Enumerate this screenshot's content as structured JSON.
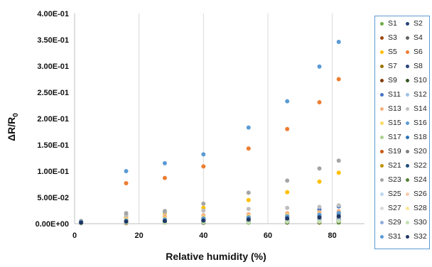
{
  "chart_data": {
    "type": "scatter",
    "title": "",
    "xlabel": "Relative humidity (%)",
    "ylabel_main": "ΔR/R",
    "ylabel_sub": "0",
    "xlim": [
      0,
      90
    ],
    "ylim": [
      0,
      0.4
    ],
    "xticks": [
      0,
      20,
      40,
      60,
      80
    ],
    "xtick_labels": [
      "0",
      "20",
      "40",
      "60",
      "80"
    ],
    "yticks": [
      0,
      0.05,
      0.1,
      0.15,
      0.2,
      0.25,
      0.3,
      0.35,
      0.4
    ],
    "ytick_labels": [
      "0.00E+00",
      "5.00E-02",
      "1.00E-01",
      "1.50E-01",
      "2.00E-01",
      "2.50E-01",
      "3.00E-01",
      "3.50E-01",
      "4.00E-01"
    ],
    "grid": "vertical",
    "legend_position": "right",
    "x": [
      2,
      16,
      28,
      40,
      54,
      66,
      76,
      82
    ],
    "series": [
      {
        "name": "S1",
        "color": "#70ad47",
        "values": [
          0.002,
          0.002,
          0.002,
          0.002,
          0.002,
          0.002,
          0.002,
          0.002
        ]
      },
      {
        "name": "S2",
        "color": "#264478",
        "values": [
          0.002,
          0.004,
          0.004,
          0.006,
          0.006,
          0.008,
          0.01,
          0.012
        ]
      },
      {
        "name": "S3",
        "color": "#9e480e",
        "values": [
          0.002,
          0.002,
          0.003,
          0.003,
          0.004,
          0.004,
          0.005,
          0.005
        ]
      },
      {
        "name": "S4",
        "color": "#636363",
        "values": [
          0.002,
          0.003,
          0.004,
          0.005,
          0.006,
          0.007,
          0.008,
          0.009
        ]
      },
      {
        "name": "S5",
        "color": "#ffc000",
        "values": [
          0.004,
          0.012,
          0.02,
          0.03,
          0.045,
          0.06,
          0.08,
          0.097
        ]
      },
      {
        "name": "S6",
        "color": "#ed7d31",
        "values": [
          0.004,
          0.077,
          0.087,
          0.109,
          0.143,
          0.18,
          0.231,
          0.275
        ]
      },
      {
        "name": "S7",
        "color": "#997300",
        "values": [
          0.002,
          0.002,
          0.002,
          0.003,
          0.003,
          0.003,
          0.004,
          0.004
        ]
      },
      {
        "name": "S8",
        "color": "#264478",
        "values": [
          0.001,
          0.002,
          0.002,
          0.003,
          0.004,
          0.005,
          0.006,
          0.007
        ]
      },
      {
        "name": "S9",
        "color": "#843c0c",
        "values": [
          0.001,
          0.001,
          0.002,
          0.002,
          0.003,
          0.003,
          0.003,
          0.004
        ]
      },
      {
        "name": "S10",
        "color": "#375623",
        "values": [
          0.001,
          0.002,
          0.002,
          0.002,
          0.003,
          0.003,
          0.004,
          0.004
        ]
      },
      {
        "name": "S11",
        "color": "#4472c4",
        "values": [
          0.003,
          0.005,
          0.007,
          0.01,
          0.013,
          0.017,
          0.027,
          0.033
        ]
      },
      {
        "name": "S12",
        "color": "#9dc3e6",
        "values": [
          0.002,
          0.003,
          0.004,
          0.005,
          0.006,
          0.007,
          0.008,
          0.009
        ]
      },
      {
        "name": "S13",
        "color": "#f4b183",
        "values": [
          0.003,
          0.01,
          0.014,
          0.016,
          0.018,
          0.02,
          0.022,
          0.024
        ]
      },
      {
        "name": "S14",
        "color": "#bfbfbf",
        "values": [
          0.003,
          0.016,
          0.022,
          0.025,
          0.028,
          0.03,
          0.032,
          0.035
        ]
      },
      {
        "name": "S15",
        "color": "#ffd966",
        "values": [
          0.003,
          0.008,
          0.01,
          0.012,
          0.014,
          0.016,
          0.018,
          0.02
        ]
      },
      {
        "name": "S16",
        "color": "#5b9bd5",
        "values": [
          0.005,
          0.1,
          0.115,
          0.132,
          0.183,
          0.233,
          0.299,
          0.346
        ]
      },
      {
        "name": "S17",
        "color": "#a9d18e",
        "values": [
          0.002,
          0.003,
          0.004,
          0.005,
          0.006,
          0.007,
          0.008,
          0.009
        ]
      },
      {
        "name": "S18",
        "color": "#2e75b6",
        "values": [
          0.002,
          0.004,
          0.006,
          0.008,
          0.01,
          0.013,
          0.016,
          0.02
        ]
      },
      {
        "name": "S19",
        "color": "#c55a11",
        "values": [
          0.002,
          0.003,
          0.004,
          0.005,
          0.006,
          0.007,
          0.008,
          0.01
        ]
      },
      {
        "name": "S20",
        "color": "#7f7f7f",
        "values": [
          0.002,
          0.005,
          0.007,
          0.009,
          0.011,
          0.013,
          0.015,
          0.017
        ]
      },
      {
        "name": "S21",
        "color": "#bf9000",
        "values": [
          0.002,
          0.004,
          0.005,
          0.006,
          0.007,
          0.008,
          0.009,
          0.01
        ]
      },
      {
        "name": "S22",
        "color": "#1f4e79",
        "values": [
          0.002,
          0.003,
          0.004,
          0.005,
          0.006,
          0.007,
          0.008,
          0.009
        ]
      },
      {
        "name": "S23",
        "color": "#a5a5a5",
        "values": [
          0.005,
          0.02,
          0.024,
          0.038,
          0.059,
          0.082,
          0.105,
          0.12
        ]
      },
      {
        "name": "S24",
        "color": "#548235",
        "values": [
          0.001,
          0.002,
          0.002,
          0.003,
          0.003,
          0.004,
          0.004,
          0.005
        ]
      },
      {
        "name": "S25",
        "color": "#bdd7ee",
        "values": [
          0.001,
          0.002,
          0.003,
          0.003,
          0.004,
          0.004,
          0.005,
          0.005
        ]
      },
      {
        "name": "S26",
        "color": "#f8cbad",
        "values": [
          0.002,
          0.003,
          0.004,
          0.004,
          0.005,
          0.006,
          0.007,
          0.008
        ]
      },
      {
        "name": "S27",
        "color": "#d9d9d9",
        "values": [
          0.002,
          0.004,
          0.005,
          0.006,
          0.007,
          0.008,
          0.009,
          0.011
        ]
      },
      {
        "name": "S28",
        "color": "#ffe699",
        "values": [
          0.002,
          0.004,
          0.005,
          0.006,
          0.008,
          0.009,
          0.011,
          0.013
        ]
      },
      {
        "name": "S29",
        "color": "#8faadc",
        "values": [
          0.002,
          0.003,
          0.004,
          0.005,
          0.006,
          0.007,
          0.008,
          0.009
        ]
      },
      {
        "name": "S30",
        "color": "#c5e0b4",
        "values": [
          0.001,
          0.002,
          0.002,
          0.003,
          0.003,
          0.004,
          0.004,
          0.005
        ]
      },
      {
        "name": "S31",
        "color": "#5b9bd5",
        "values": [
          0.003,
          0.006,
          0.008,
          0.01,
          0.012,
          0.014,
          0.017,
          0.02
        ]
      },
      {
        "name": "S32",
        "color": "#203864",
        "values": [
          0.002,
          0.004,
          0.005,
          0.006,
          0.008,
          0.01,
          0.012,
          0.014
        ]
      }
    ]
  }
}
